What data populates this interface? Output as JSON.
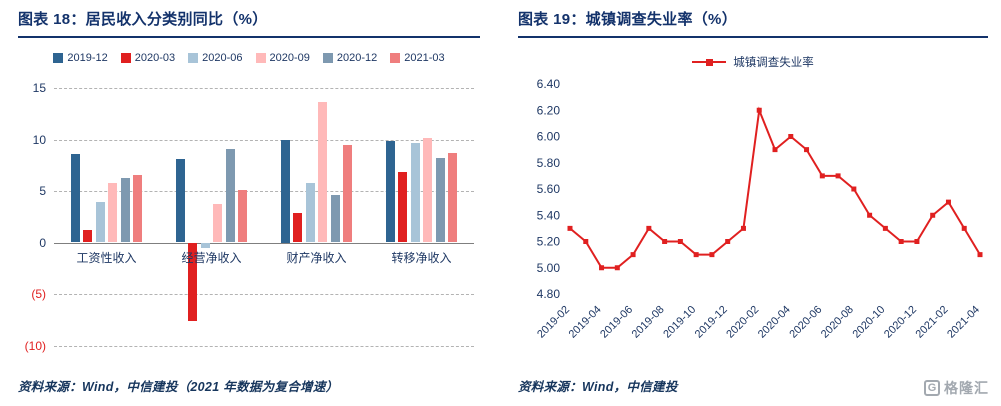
{
  "figures": {
    "left": {
      "title": "图表 18：居民收入分类别同比（%）",
      "source": "资料来源：Wind，中信建投（2021 年数据为复合增速）"
    },
    "right": {
      "title": "图表 19：城镇调查失业率（%）",
      "source": "资料来源：Wind，中信建投"
    }
  },
  "watermark": {
    "letter": "G",
    "text": "格隆汇"
  },
  "chart_data": [
    {
      "type": "bar",
      "title": "居民收入分类别同比（%）",
      "categories": [
        "工资性收入",
        "经营净收入",
        "财产净收入",
        "转移净收入"
      ],
      "series": [
        {
          "name": "2019-12",
          "color": "#2e6491",
          "values": [
            8.6,
            8.1,
            10.0,
            9.9
          ]
        },
        {
          "name": "2020-03",
          "color": "#e02020",
          "values": [
            1.2,
            -7.6,
            2.9,
            6.8
          ]
        },
        {
          "name": "2020-06",
          "color": "#a8c4d8",
          "values": [
            3.9,
            -0.5,
            5.8,
            9.7
          ]
        },
        {
          "name": "2020-09",
          "color": "#ffb9b9",
          "values": [
            5.8,
            3.7,
            13.6,
            10.1
          ]
        },
        {
          "name": "2020-12",
          "color": "#7e99b0",
          "values": [
            6.3,
            9.1,
            4.6,
            8.2
          ]
        },
        {
          "name": "2021-03",
          "color": "#ef7e7e",
          "values": [
            6.6,
            5.1,
            9.5,
            8.7
          ]
        }
      ],
      "ylim": [
        -10,
        15
      ],
      "yticks": [
        15,
        10,
        5,
        0,
        -5,
        -10
      ],
      "negative_tick_format": "parentheses-red",
      "grid": "horizontal-dashed",
      "legend_position": "top"
    },
    {
      "type": "line",
      "title": "城镇调查失业率（%）",
      "legend": "城镇调查失业率",
      "color": "#e02020",
      "marker": "square",
      "x": [
        "2019-02",
        "2019-03",
        "2019-04",
        "2019-05",
        "2019-06",
        "2019-07",
        "2019-08",
        "2019-09",
        "2019-10",
        "2019-11",
        "2019-12",
        "2020-01",
        "2020-02",
        "2020-03",
        "2020-04",
        "2020-05",
        "2020-06",
        "2020-07",
        "2020-08",
        "2020-09",
        "2020-10",
        "2020-11",
        "2020-12",
        "2021-01",
        "2021-02",
        "2021-03",
        "2021-04"
      ],
      "values": [
        5.3,
        5.2,
        5.0,
        5.0,
        5.1,
        5.3,
        5.2,
        5.2,
        5.1,
        5.1,
        5.2,
        5.3,
        6.2,
        5.9,
        6.0,
        5.9,
        5.7,
        5.7,
        5.6,
        5.4,
        5.3,
        5.2,
        5.2,
        5.4,
        5.5,
        5.3,
        5.1
      ],
      "x_tick_labels": [
        "2019-02",
        "2019-04",
        "2019-06",
        "2019-08",
        "2019-10",
        "2019-12",
        "2020-02",
        "2020-04",
        "2020-06",
        "2020-08",
        "2020-10",
        "2020-12",
        "2021-02",
        "2021-04"
      ],
      "ylim": [
        4.8,
        6.4
      ],
      "yticks": [
        6.4,
        6.2,
        6.0,
        5.8,
        5.6,
        5.4,
        5.2,
        5.0,
        4.8
      ],
      "grid": "off",
      "legend_position": "top"
    }
  ]
}
